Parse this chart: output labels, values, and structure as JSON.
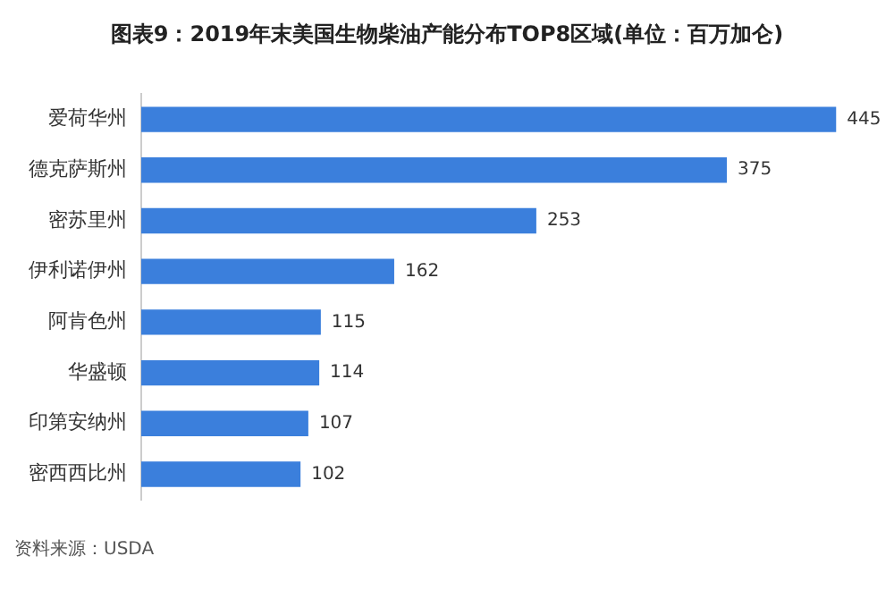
{
  "chart_data": {
    "type": "bar",
    "orientation": "horizontal",
    "title": "图表9：2019年末美国生物柴油产能分布TOP8区域(单位：百万加仑)",
    "categories": [
      "爱荷华州",
      "德克萨斯州",
      "密苏里州",
      "伊利诺伊州",
      "阿肯色州",
      "华盛顿",
      "印第安纳州",
      "密西西比州"
    ],
    "values": [
      445,
      375,
      253,
      162,
      115,
      114,
      107,
      102
    ],
    "color": "#3b7fdc",
    "data_labels": true,
    "grid": false,
    "legend": false,
    "annotations": [
      "资料来源：USDA"
    ]
  }
}
